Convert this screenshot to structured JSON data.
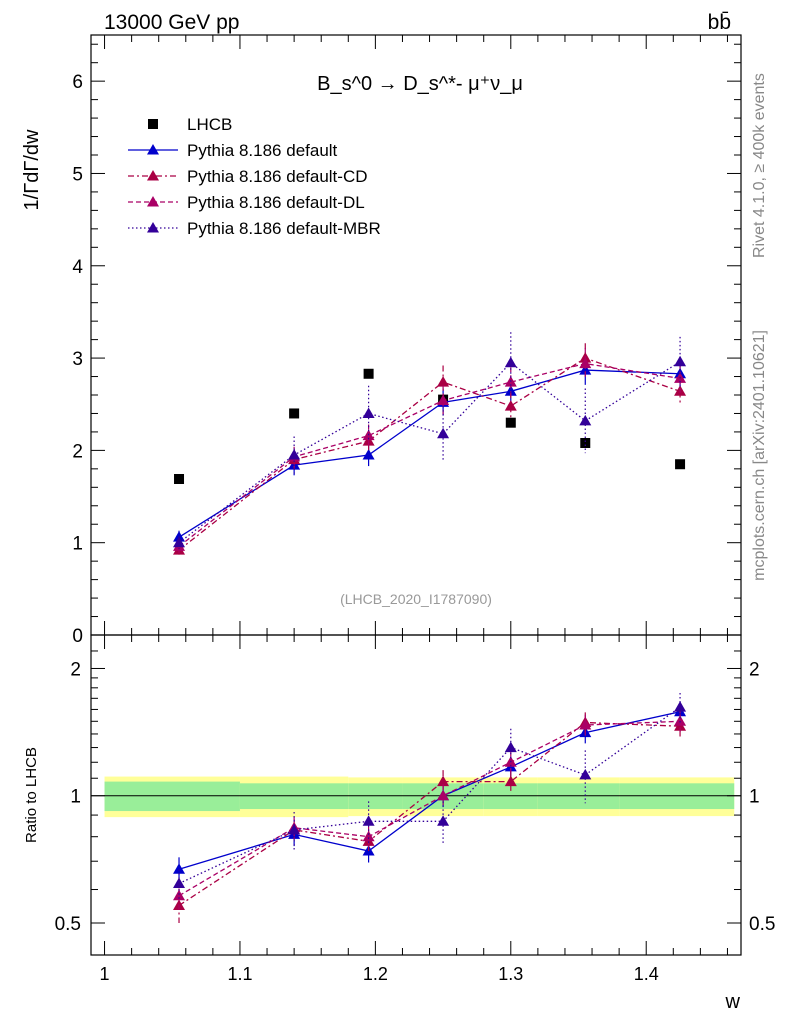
{
  "colors": {
    "lhcb": "#000000",
    "default": "#0000cc",
    "cd": "#aa0044",
    "dl": "#aa0066",
    "mbr": "#330099",
    "band_inner": "#99ee99",
    "band_outer": "#ffff99"
  },
  "chart_data": [
    {
      "type": "scatter",
      "title": "B_s^0 → D_s^*- μ⁺ν_μ",
      "header_left": "13000 GeV pp",
      "header_right": "bb̄",
      "side_note_top": "Rivet 4.1.0, ≥ 400k events",
      "side_note_bottom": "mcplots.cern.ch [arXiv:2401.10621]",
      "analysis_label": "(LHCB_2020_I1787090)",
      "xlabel": "w",
      "ylabel": "1/ΓdΓ/dw",
      "xlim": [
        0.99,
        1.47
      ],
      "ylim": [
        0,
        6.5
      ],
      "x": [
        1.055,
        1.14,
        1.195,
        1.25,
        1.3,
        1.355,
        1.425
      ],
      "series": [
        {
          "name": "LHCB",
          "style": "square",
          "values": [
            1.69,
            2.4,
            2.83,
            2.55,
            2.3,
            2.08,
            1.85
          ]
        },
        {
          "name": "Pythia 8.186 default",
          "style": "solid",
          "values": [
            1.06,
            1.84,
            1.95,
            2.52,
            2.64,
            2.87,
            2.83
          ],
          "errors": [
            0.07,
            0.11,
            0.12,
            0.14,
            0.15,
            0.16,
            0.16
          ]
        },
        {
          "name": "Pythia 8.186 default-CD",
          "style": "dashdot",
          "values": [
            0.92,
            1.9,
            2.1,
            2.74,
            2.48,
            3.0,
            2.64
          ],
          "errors": [
            0.07,
            0.11,
            0.12,
            0.18,
            0.15,
            0.16,
            0.15
          ]
        },
        {
          "name": "Pythia 8.186 default-DL",
          "style": "dashed",
          "values": [
            0.96,
            1.93,
            2.16,
            2.54,
            2.74,
            2.94,
            2.78
          ],
          "errors": [
            0.07,
            0.11,
            0.12,
            0.16,
            0.16,
            0.17,
            0.16
          ]
        },
        {
          "name": "Pythia 8.186 default-MBR",
          "style": "dotted",
          "values": [
            1.0,
            1.95,
            2.4,
            2.18,
            2.95,
            2.32,
            2.96
          ],
          "errors": [
            0.07,
            0.2,
            0.3,
            0.3,
            0.33,
            0.35,
            0.27
          ]
        }
      ],
      "yticks": [
        0,
        1,
        2,
        3,
        4,
        5,
        6
      ],
      "ytick_labels": [
        "0",
        "1",
        "2",
        "3",
        "4",
        "5",
        "6"
      ],
      "legend": "top-left"
    },
    {
      "type": "scatter",
      "ylabel": "Ratio to LHCB",
      "xlabel": "w",
      "xlim": [
        0.99,
        1.47
      ],
      "ylim": [
        0.42,
        2.4
      ],
      "yscale": "log",
      "x": [
        1.055,
        1.14,
        1.195,
        1.25,
        1.3,
        1.355,
        1.425
      ],
      "bin_edges": [
        1.0,
        1.1,
        1.18,
        1.22,
        1.28,
        1.32,
        1.38,
        1.465
      ],
      "band_inner": [
        0.08,
        0.07,
        0.07,
        0.07,
        0.07,
        0.07,
        0.07
      ],
      "band_outer": [
        0.11,
        0.11,
        0.105,
        0.105,
        0.105,
        0.105,
        0.105
      ],
      "series": [
        {
          "name": "Pythia 8.186 default",
          "style": "solid",
          "values": [
            0.67,
            0.81,
            0.74,
            1.0,
            1.17,
            1.41,
            1.58
          ],
          "errors": [
            0.045,
            0.05,
            0.045,
            0.06,
            0.065,
            0.08,
            0.085
          ]
        },
        {
          "name": "Pythia 8.186 default-CD",
          "style": "dashdot",
          "values": [
            0.55,
            0.83,
            0.78,
            1.08,
            1.08,
            1.49,
            1.46
          ],
          "errors": [
            0.05,
            0.05,
            0.045,
            0.07,
            0.065,
            0.085,
            0.08
          ]
        },
        {
          "name": "Pythia 8.186 default-DL",
          "style": "dashed",
          "values": [
            0.58,
            0.84,
            0.8,
            1.0,
            1.2,
            1.47,
            1.5
          ],
          "errors": [
            0.05,
            0.05,
            0.045,
            0.065,
            0.07,
            0.085,
            0.085
          ]
        },
        {
          "name": "Pythia 8.186 default-MBR",
          "style": "dotted",
          "values": [
            0.62,
            0.83,
            0.87,
            0.87,
            1.3,
            1.12,
            1.62
          ],
          "errors": [
            0.05,
            0.085,
            0.1,
            0.1,
            0.14,
            0.16,
            0.13
          ]
        }
      ],
      "yticks": [
        0.5,
        1,
        2
      ],
      "ytick_labels": [
        "0.5",
        "1",
        "2"
      ],
      "xticks": [
        1,
        1.1,
        1.2,
        1.3,
        1.4
      ],
      "xtick_labels": [
        "1",
        "1.1",
        "1.2",
        "1.3",
        "1.4"
      ]
    }
  ]
}
